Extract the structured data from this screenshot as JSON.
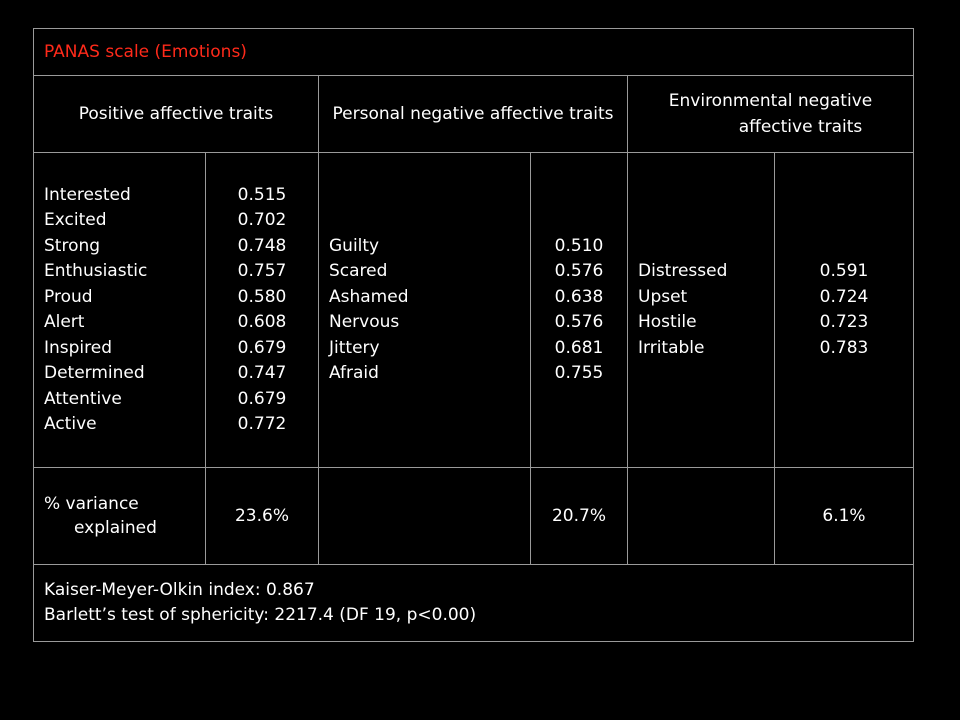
{
  "title": "PANAS scale (Emotions)",
  "title_color": "#ff2a1a",
  "groups": {
    "positive": "Positive affective traits",
    "personal_negative": "Personal negative affective traits",
    "environmental_negative_line1": "Environmental negative",
    "environmental_negative_line2": "affective traits"
  },
  "positive_items": [
    {
      "label": "Interested",
      "value": "0.515"
    },
    {
      "label": "Excited",
      "value": "0.702"
    },
    {
      "label": "Strong",
      "value": "0.748"
    },
    {
      "label": "Enthusiastic",
      "value": "0.757"
    },
    {
      "label": "Proud",
      "value": "0.580"
    },
    {
      "label": "Alert",
      "value": "0.608"
    },
    {
      "label": "Inspired",
      "value": "0.679"
    },
    {
      "label": "Determined",
      "value": "0.747"
    },
    {
      "label": "Attentive",
      "value": "0.679"
    },
    {
      "label": "Active",
      "value": "0.772"
    }
  ],
  "personal_negative_items": [
    {
      "label": "Guilty",
      "value": "0.510"
    },
    {
      "label": "Scared",
      "value": "0.576"
    },
    {
      "label": "Ashamed",
      "value": "0.638"
    },
    {
      "label": "Nervous",
      "value": "0.576"
    },
    {
      "label": "Jittery",
      "value": "0.681"
    },
    {
      "label": "Afraid",
      "value": "0.755"
    }
  ],
  "environmental_negative_items": [
    {
      "label": "Distressed",
      "value": "0.591"
    },
    {
      "label": "Upset",
      "value": "0.724"
    },
    {
      "label": "Hostile",
      "value": "0.723"
    },
    {
      "label": "Irritable",
      "value": "0.783"
    }
  ],
  "variance": {
    "label_line1": "% variance",
    "label_line2": "explained",
    "positive": "23.6%",
    "personal_negative": "20.7%",
    "environmental_negative": "6.1%"
  },
  "stats": {
    "kmo": "Kaiser-Meyer-Olkin index:  0.867",
    "bartlett": "Barlett’s test of sphericity:  2217.4 (DF 19, p<0.00)"
  }
}
